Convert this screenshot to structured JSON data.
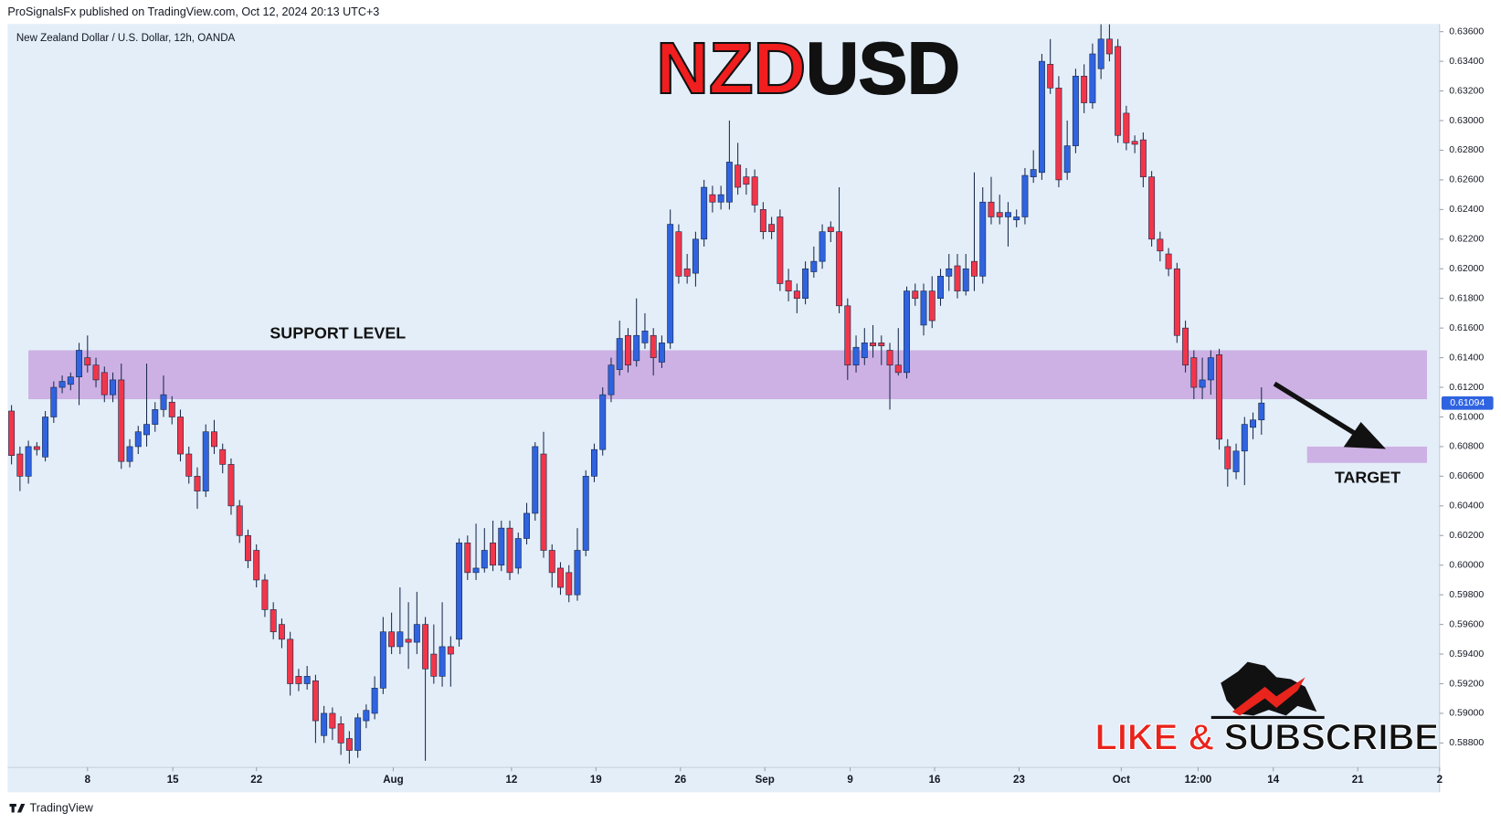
{
  "header": "ProSignalsFx published on TradingView.com, Oct 12, 2024 20:13 UTC+3",
  "footer": "TradingView",
  "chart_data": {
    "type": "candlestick",
    "symbol": "New Zealand Dollar / U.S. Dollar, 12h, OANDA",
    "title": [
      "NZD",
      "USD"
    ],
    "title_colors": [
      "#f01e1e",
      "#111111"
    ],
    "up_color": "#2f63e0",
    "down_color": "#f2364a",
    "ylim": [
      0.5864,
      0.6365
    ],
    "yticks": [
      {
        "value": 0.588,
        "label": "0.58800"
      },
      {
        "value": 0.59,
        "label": "0.59000"
      },
      {
        "value": 0.592,
        "label": "0.59200"
      },
      {
        "value": 0.594,
        "label": "0.59400"
      },
      {
        "value": 0.596,
        "label": "0.59600"
      },
      {
        "value": 0.598,
        "label": "0.59800"
      },
      {
        "value": 0.6,
        "label": "0.60000"
      },
      {
        "value": 0.602,
        "label": "0.60200"
      },
      {
        "value": 0.604,
        "label": "0.60400"
      },
      {
        "value": 0.606,
        "label": "0.60600"
      },
      {
        "value": 0.608,
        "label": "0.60800"
      },
      {
        "value": 0.61,
        "label": "0.61000"
      },
      {
        "value": 0.612,
        "label": "0.61200"
      },
      {
        "value": 0.614,
        "label": "0.61400"
      },
      {
        "value": 0.616,
        "label": "0.61600"
      },
      {
        "value": 0.618,
        "label": "0.61800"
      },
      {
        "value": 0.62,
        "label": "0.62000"
      },
      {
        "value": 0.622,
        "label": "0.62200"
      },
      {
        "value": 0.624,
        "label": "0.62400"
      },
      {
        "value": 0.626,
        "label": "0.62600"
      },
      {
        "value": 0.628,
        "label": "0.62800"
      },
      {
        "value": 0.63,
        "label": "0.63000"
      },
      {
        "value": 0.632,
        "label": "0.63200"
      },
      {
        "value": 0.634,
        "label": "0.63400"
      },
      {
        "value": 0.636,
        "label": "0.63600"
      }
    ],
    "xlim": [
      -0.5,
      169.5
    ],
    "xticks": [
      {
        "value": 9,
        "label": "8"
      },
      {
        "value": 19.1,
        "label": "15"
      },
      {
        "value": 29,
        "label": "22"
      },
      {
        "value": 45.2,
        "label": "Aug"
      },
      {
        "value": 59.2,
        "label": "12"
      },
      {
        "value": 69.2,
        "label": "19"
      },
      {
        "value": 79.2,
        "label": "26"
      },
      {
        "value": 89.2,
        "label": "Sep"
      },
      {
        "value": 99.3,
        "label": "9"
      },
      {
        "value": 109.3,
        "label": "16"
      },
      {
        "value": 119.3,
        "label": "23"
      },
      {
        "value": 131.4,
        "label": "Oct"
      },
      {
        "value": 140.5,
        "label": "12:00"
      },
      {
        "value": 149.4,
        "label": "14"
      },
      {
        "value": 159.4,
        "label": "21"
      },
      {
        "value": 169.1,
        "label": "2"
      }
    ],
    "last_price": {
      "value": 0.61094,
      "label": "0.61094"
    },
    "zones": [
      {
        "label": "SUPPORT LEVEL",
        "from": 0.6145,
        "to": 0.6112,
        "start": 2,
        "end": 167.6,
        "color": "#c9a6e0"
      },
      {
        "label": "TARGET",
        "from": 0.608,
        "to": 0.6069,
        "start": 153.4,
        "end": 167.6,
        "color": "#c9a6e0"
      }
    ],
    "call_to_action": [
      "LIKE &",
      "SUBSCRIBE"
    ],
    "ohlc": [
      [
        0.6104,
        0.6108,
        0.6068,
        0.6074
      ],
      [
        0.6075,
        0.608,
        0.605,
        0.606
      ],
      [
        0.606,
        0.6084,
        0.6055,
        0.608
      ],
      [
        0.608,
        0.6083,
        0.6074,
        0.6078
      ],
      [
        0.6073,
        0.6104,
        0.607,
        0.61
      ],
      [
        0.61,
        0.6124,
        0.6096,
        0.612
      ],
      [
        0.612,
        0.6128,
        0.6116,
        0.6124
      ],
      [
        0.6122,
        0.613,
        0.6118,
        0.6127
      ],
      [
        0.6127,
        0.615,
        0.6108,
        0.6145
      ],
      [
        0.614,
        0.6155,
        0.613,
        0.6135
      ],
      [
        0.6135,
        0.614,
        0.612,
        0.6125
      ],
      [
        0.613,
        0.6134,
        0.611,
        0.6115
      ],
      [
        0.6115,
        0.613,
        0.611,
        0.6125
      ],
      [
        0.6125,
        0.6136,
        0.6065,
        0.607
      ],
      [
        0.607,
        0.6085,
        0.6066,
        0.608
      ],
      [
        0.608,
        0.6094,
        0.6075,
        0.609
      ],
      [
        0.6088,
        0.6136,
        0.608,
        0.6095
      ],
      [
        0.6095,
        0.611,
        0.609,
        0.6105
      ],
      [
        0.6105,
        0.6128,
        0.61,
        0.6115
      ],
      [
        0.611,
        0.6114,
        0.6095,
        0.61
      ],
      [
        0.61,
        0.6105,
        0.607,
        0.6075
      ],
      [
        0.6075,
        0.608,
        0.6055,
        0.606
      ],
      [
        0.606,
        0.6066,
        0.6038,
        0.605
      ],
      [
        0.605,
        0.6095,
        0.6046,
        0.609
      ],
      [
        0.609,
        0.6098,
        0.6075,
        0.608
      ],
      [
        0.6078,
        0.6082,
        0.6062,
        0.6068
      ],
      [
        0.6068,
        0.6072,
        0.6034,
        0.604
      ],
      [
        0.604,
        0.6044,
        0.6015,
        0.602
      ],
      [
        0.602,
        0.6024,
        0.5998,
        0.6003
      ],
      [
        0.601,
        0.6014,
        0.5985,
        0.599
      ],
      [
        0.599,
        0.5994,
        0.5965,
        0.597
      ],
      [
        0.597,
        0.5975,
        0.595,
        0.5955
      ],
      [
        0.596,
        0.5964,
        0.5944,
        0.595
      ],
      [
        0.595,
        0.5955,
        0.5912,
        0.592
      ],
      [
        0.5925,
        0.593,
        0.5915,
        0.592
      ],
      [
        0.592,
        0.5932,
        0.5916,
        0.5925
      ],
      [
        0.5922,
        0.5926,
        0.588,
        0.5895
      ],
      [
        0.5885,
        0.5905,
        0.588,
        0.59
      ],
      [
        0.59,
        0.5904,
        0.5882,
        0.589
      ],
      [
        0.5893,
        0.5898,
        0.5872,
        0.588
      ],
      [
        0.5883,
        0.5888,
        0.5866,
        0.5875
      ],
      [
        0.5875,
        0.59,
        0.587,
        0.5897
      ],
      [
        0.5895,
        0.5906,
        0.589,
        0.5902
      ],
      [
        0.59,
        0.5925,
        0.5896,
        0.5917
      ],
      [
        0.5917,
        0.5965,
        0.5913,
        0.5955
      ],
      [
        0.5955,
        0.5968,
        0.594,
        0.5945
      ],
      [
        0.5945,
        0.5985,
        0.594,
        0.5955
      ],
      [
        0.595,
        0.5975,
        0.593,
        0.5948
      ],
      [
        0.5948,
        0.5982,
        0.594,
        0.596
      ],
      [
        0.596,
        0.5965,
        0.5868,
        0.593
      ],
      [
        0.594,
        0.596,
        0.592,
        0.5925
      ],
      [
        0.5925,
        0.5975,
        0.5918,
        0.5945
      ],
      [
        0.5945,
        0.5952,
        0.5918,
        0.594
      ],
      [
        0.595,
        0.6018,
        0.5945,
        0.6015
      ],
      [
        0.6015,
        0.602,
        0.599,
        0.5995
      ],
      [
        0.5995,
        0.6028,
        0.599,
        0.5998
      ],
      [
        0.5998,
        0.6025,
        0.5995,
        0.601
      ],
      [
        0.6015,
        0.603,
        0.5996,
        0.6
      ],
      [
        0.6,
        0.603,
        0.5996,
        0.6025
      ],
      [
        0.6025,
        0.603,
        0.599,
        0.5995
      ],
      [
        0.5998,
        0.6022,
        0.5994,
        0.6018
      ],
      [
        0.6018,
        0.6042,
        0.6014,
        0.6035
      ],
      [
        0.6035,
        0.6083,
        0.603,
        0.608
      ],
      [
        0.6075,
        0.609,
        0.6005,
        0.601
      ],
      [
        0.601,
        0.6014,
        0.5985,
        0.5995
      ],
      [
        0.5998,
        0.6002,
        0.598,
        0.5985
      ],
      [
        0.5995,
        0.6,
        0.5975,
        0.598
      ],
      [
        0.598,
        0.6025,
        0.5976,
        0.601
      ],
      [
        0.601,
        0.6064,
        0.6006,
        0.606
      ],
      [
        0.606,
        0.6082,
        0.6056,
        0.6078
      ],
      [
        0.6078,
        0.612,
        0.6074,
        0.6115
      ],
      [
        0.6115,
        0.614,
        0.611,
        0.6135
      ],
      [
        0.6132,
        0.6165,
        0.6128,
        0.6153
      ],
      [
        0.6155,
        0.616,
        0.613,
        0.6135
      ],
      [
        0.6138,
        0.618,
        0.6134,
        0.6155
      ],
      [
        0.615,
        0.617,
        0.6146,
        0.6158
      ],
      [
        0.6155,
        0.616,
        0.6128,
        0.614
      ],
      [
        0.6137,
        0.6155,
        0.6133,
        0.615
      ],
      [
        0.615,
        0.624,
        0.6146,
        0.623
      ],
      [
        0.6225,
        0.623,
        0.619,
        0.6195
      ],
      [
        0.62,
        0.621,
        0.619,
        0.6195
      ],
      [
        0.6197,
        0.6225,
        0.6188,
        0.622
      ],
      [
        0.622,
        0.626,
        0.6215,
        0.6255
      ],
      [
        0.625,
        0.6256,
        0.6238,
        0.6245
      ],
      [
        0.6245,
        0.6256,
        0.624,
        0.625
      ],
      [
        0.6245,
        0.63,
        0.624,
        0.6272
      ],
      [
        0.627,
        0.6285,
        0.625,
        0.6255
      ],
      [
        0.6262,
        0.6268,
        0.625,
        0.6257
      ],
      [
        0.6262,
        0.6267,
        0.6238,
        0.6243
      ],
      [
        0.624,
        0.6245,
        0.622,
        0.6225
      ],
      [
        0.623,
        0.6235,
        0.622,
        0.6225
      ],
      [
        0.6235,
        0.624,
        0.6185,
        0.619
      ],
      [
        0.6192,
        0.62,
        0.6178,
        0.6185
      ],
      [
        0.6185,
        0.619,
        0.617,
        0.618
      ],
      [
        0.618,
        0.6205,
        0.6176,
        0.62
      ],
      [
        0.6198,
        0.6215,
        0.6194,
        0.6205
      ],
      [
        0.6205,
        0.623,
        0.62,
        0.6225
      ],
      [
        0.6228,
        0.6232,
        0.6218,
        0.6225
      ],
      [
        0.6225,
        0.6255,
        0.617,
        0.6175
      ],
      [
        0.6175,
        0.618,
        0.6125,
        0.6135
      ],
      [
        0.6135,
        0.6155,
        0.613,
        0.6147
      ],
      [
        0.614,
        0.616,
        0.6135,
        0.615
      ],
      [
        0.615,
        0.6162,
        0.614,
        0.6148
      ],
      [
        0.615,
        0.6155,
        0.6135,
        0.6148
      ],
      [
        0.6145,
        0.615,
        0.6105,
        0.6135
      ],
      [
        0.6135,
        0.616,
        0.6128,
        0.613
      ],
      [
        0.613,
        0.6188,
        0.6126,
        0.6185
      ],
      [
        0.6185,
        0.619,
        0.6175,
        0.618
      ],
      [
        0.6162,
        0.619,
        0.6155,
        0.6185
      ],
      [
        0.6185,
        0.6195,
        0.616,
        0.6165
      ],
      [
        0.618,
        0.62,
        0.6175,
        0.6195
      ],
      [
        0.6195,
        0.621,
        0.6185,
        0.62
      ],
      [
        0.6202,
        0.621,
        0.618,
        0.6185
      ],
      [
        0.6185,
        0.621,
        0.6182,
        0.62
      ],
      [
        0.6205,
        0.6265,
        0.6185,
        0.6195
      ],
      [
        0.6195,
        0.6255,
        0.619,
        0.6245
      ],
      [
        0.6245,
        0.6262,
        0.623,
        0.6235
      ],
      [
        0.6238,
        0.625,
        0.623,
        0.6235
      ],
      [
        0.6235,
        0.6245,
        0.6215,
        0.6238
      ],
      [
        0.6233,
        0.624,
        0.6228,
        0.6235
      ],
      [
        0.6235,
        0.6268,
        0.623,
        0.6263
      ],
      [
        0.6262,
        0.628,
        0.6258,
        0.6267
      ],
      [
        0.6265,
        0.6345,
        0.626,
        0.634
      ],
      [
        0.6338,
        0.6355,
        0.6318,
        0.6322
      ],
      [
        0.6322,
        0.633,
        0.6255,
        0.626
      ],
      [
        0.6265,
        0.63,
        0.626,
        0.6283
      ],
      [
        0.6283,
        0.6335,
        0.6278,
        0.633
      ],
      [
        0.633,
        0.6338,
        0.6305,
        0.6312
      ],
      [
        0.6312,
        0.6352,
        0.6308,
        0.6345
      ],
      [
        0.6335,
        0.6365,
        0.6328,
        0.6355
      ],
      [
        0.6355,
        0.6365,
        0.634,
        0.6345
      ],
      [
        0.635,
        0.6355,
        0.6285,
        0.629
      ],
      [
        0.6305,
        0.631,
        0.628,
        0.6285
      ],
      [
        0.6286,
        0.629,
        0.6278,
        0.6284
      ],
      [
        0.6287,
        0.6292,
        0.6255,
        0.6262
      ],
      [
        0.6262,
        0.6266,
        0.6215,
        0.622
      ],
      [
        0.622,
        0.6225,
        0.6205,
        0.6212
      ],
      [
        0.621,
        0.6214,
        0.6195,
        0.62
      ],
      [
        0.62,
        0.6204,
        0.615,
        0.6155
      ],
      [
        0.616,
        0.6165,
        0.613,
        0.6135
      ],
      [
        0.614,
        0.6145,
        0.6112,
        0.612
      ],
      [
        0.612,
        0.614,
        0.6112,
        0.6125
      ],
      [
        0.6125,
        0.6145,
        0.6115,
        0.614
      ],
      [
        0.6142,
        0.6146,
        0.6078,
        0.6085
      ],
      [
        0.608,
        0.6085,
        0.6053,
        0.6065
      ],
      [
        0.6063,
        0.6082,
        0.6058,
        0.6077
      ],
      [
        0.6077,
        0.61,
        0.6054,
        0.6095
      ],
      [
        0.6093,
        0.6103,
        0.6085,
        0.6098
      ],
      [
        0.6098,
        0.612,
        0.6088,
        0.61094
      ]
    ]
  }
}
